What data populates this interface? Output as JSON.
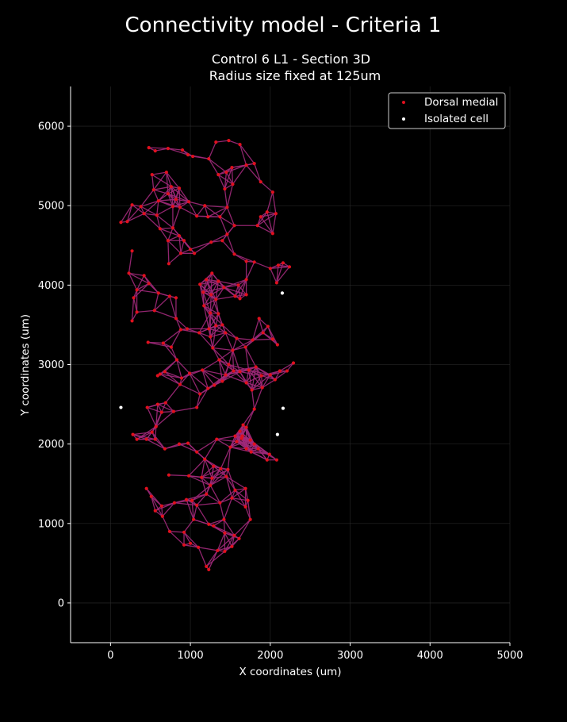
{
  "figure": {
    "title": "Connectivity model - Criteria 1",
    "background": "#000000"
  },
  "chart_data": {
    "type": "scatter",
    "title_lines": [
      "Control 6 L1 - Section 3D",
      "Radius size fixed at 125um"
    ],
    "xlabel": "X coordinates (um)",
    "ylabel": "Y coordinates (um)",
    "xlim": [
      -500,
      5000
    ],
    "ylim": [
      -500,
      6500
    ],
    "xticks": [
      0,
      1000,
      2000,
      3000,
      4000,
      5000
    ],
    "yticks": [
      0,
      1000,
      2000,
      3000,
      4000,
      5000,
      6000
    ],
    "grid": true,
    "legend_position": "top-right",
    "edge_color": "#a0297a",
    "edge_color_minor": "#3f8f7a",
    "series": [
      {
        "name": "Dorsal medial",
        "color": "#e0101e",
        "points": [
          [
            480,
            5730
          ],
          [
            560,
            5690
          ],
          [
            720,
            5720
          ],
          [
            900,
            5700
          ],
          [
            970,
            5640
          ],
          [
            1030,
            5620
          ],
          [
            1230,
            5590
          ],
          [
            1320,
            5800
          ],
          [
            1480,
            5820
          ],
          [
            1620,
            5770
          ],
          [
            1700,
            5510
          ],
          [
            1800,
            5530
          ],
          [
            1520,
            5480
          ],
          [
            1450,
            5420
          ],
          [
            1350,
            5390
          ],
          [
            1530,
            5270
          ],
          [
            1430,
            5210
          ],
          [
            1880,
            5300
          ],
          [
            2030,
            5170
          ],
          [
            2070,
            4900
          ],
          [
            1960,
            4920
          ],
          [
            1880,
            4860
          ],
          [
            1840,
            4750
          ],
          [
            2030,
            4650
          ],
          [
            520,
            5390
          ],
          [
            700,
            5420
          ],
          [
            540,
            5200
          ],
          [
            600,
            5060
          ],
          [
            720,
            5150
          ],
          [
            760,
            5240
          ],
          [
            860,
            5220
          ],
          [
            820,
            5080
          ],
          [
            980,
            5050
          ],
          [
            870,
            4980
          ],
          [
            1180,
            5000
          ],
          [
            1220,
            4860
          ],
          [
            1080,
            4870
          ],
          [
            1370,
            4860
          ],
          [
            1460,
            4980
          ],
          [
            780,
            4990
          ],
          [
            580,
            4880
          ],
          [
            420,
            4900
          ],
          [
            380,
            4990
          ],
          [
            270,
            5010
          ],
          [
            210,
            4800
          ],
          [
            130,
            4790
          ],
          [
            620,
            4710
          ],
          [
            780,
            4720
          ],
          [
            860,
            4620
          ],
          [
            720,
            4560
          ],
          [
            920,
            4560
          ],
          [
            1000,
            4450
          ],
          [
            1050,
            4400
          ],
          [
            880,
            4400
          ],
          [
            730,
            4270
          ],
          [
            1260,
            4540
          ],
          [
            1400,
            4560
          ],
          [
            1550,
            4750
          ],
          [
            1460,
            4640
          ],
          [
            1550,
            4390
          ],
          [
            1700,
            4300
          ],
          [
            1800,
            4290
          ],
          [
            2000,
            4210
          ],
          [
            2100,
            4250
          ],
          [
            2160,
            4280
          ],
          [
            2240,
            4230
          ],
          [
            2080,
            4030
          ],
          [
            2090,
            3250
          ],
          [
            270,
            4430
          ],
          [
            230,
            4150
          ],
          [
            420,
            4120
          ],
          [
            480,
            4020
          ],
          [
            330,
            3940
          ],
          [
            600,
            3900
          ],
          [
            740,
            3860
          ],
          [
            820,
            3840
          ],
          [
            290,
            3840
          ],
          [
            330,
            3660
          ],
          [
            270,
            3550
          ],
          [
            550,
            3680
          ],
          [
            820,
            3580
          ],
          [
            880,
            3440
          ],
          [
            960,
            3450
          ],
          [
            1120,
            4010
          ],
          [
            1200,
            4070
          ],
          [
            1270,
            4150
          ],
          [
            1350,
            4050
          ],
          [
            1420,
            3970
          ],
          [
            1160,
            3910
          ],
          [
            1260,
            3880
          ],
          [
            1320,
            3820
          ],
          [
            1170,
            3740
          ],
          [
            1250,
            3650
          ],
          [
            1350,
            3640
          ],
          [
            1400,
            3500
          ],
          [
            1320,
            3490
          ],
          [
            1230,
            3450
          ],
          [
            1440,
            3400
          ],
          [
            1560,
            3860
          ],
          [
            1620,
            3830
          ],
          [
            1700,
            3880
          ],
          [
            1700,
            4070
          ],
          [
            1600,
            4000
          ],
          [
            1110,
            3400
          ],
          [
            1280,
            3210
          ],
          [
            1250,
            3350
          ],
          [
            1360,
            3060
          ],
          [
            1530,
            3180
          ],
          [
            1580,
            3330
          ],
          [
            1690,
            3220
          ],
          [
            1780,
            3310
          ],
          [
            1860,
            3580
          ],
          [
            1970,
            3480
          ],
          [
            1910,
            3400
          ],
          [
            2030,
            3320
          ],
          [
            1480,
            3000
          ],
          [
            1540,
            2920
          ],
          [
            1440,
            2870
          ],
          [
            1400,
            2790
          ],
          [
            1620,
            2910
          ],
          [
            1730,
            2930
          ],
          [
            1820,
            2970
          ],
          [
            1890,
            2860
          ],
          [
            2000,
            2870
          ],
          [
            2060,
            2810
          ],
          [
            2120,
            2920
          ],
          [
            2290,
            3020
          ],
          [
            2210,
            2920
          ],
          [
            1700,
            2770
          ],
          [
            1770,
            2680
          ],
          [
            1900,
            2710
          ],
          [
            470,
            3280
          ],
          [
            660,
            3270
          ],
          [
            760,
            3220
          ],
          [
            830,
            3060
          ],
          [
            620,
            2880
          ],
          [
            680,
            2910
          ],
          [
            590,
            2860
          ],
          [
            890,
            2830
          ],
          [
            870,
            2750
          ],
          [
            990,
            2890
          ],
          [
            1150,
            2930
          ],
          [
            1300,
            2740
          ],
          [
            1120,
            2630
          ],
          [
            1080,
            2460
          ],
          [
            1220,
            2700
          ],
          [
            1800,
            2440
          ],
          [
            460,
            2460
          ],
          [
            590,
            2500
          ],
          [
            690,
            2520
          ],
          [
            790,
            2410
          ],
          [
            640,
            2400
          ],
          [
            570,
            2220
          ],
          [
            520,
            2150
          ],
          [
            280,
            2120
          ],
          [
            330,
            2060
          ],
          [
            450,
            2060
          ],
          [
            560,
            2060
          ],
          [
            680,
            1940
          ],
          [
            860,
            2000
          ],
          [
            970,
            2010
          ],
          [
            1080,
            1900
          ],
          [
            1180,
            1810
          ],
          [
            1290,
            1720
          ],
          [
            1380,
            1690
          ],
          [
            1470,
            1680
          ],
          [
            1450,
            1590
          ],
          [
            1330,
            2060
          ],
          [
            1500,
            1960
          ],
          [
            1560,
            2100
          ],
          [
            1620,
            2160
          ],
          [
            1660,
            2240
          ],
          [
            1700,
            2210
          ],
          [
            1650,
            2100
          ],
          [
            1750,
            2050
          ],
          [
            1800,
            2000
          ],
          [
            1850,
            1940
          ],
          [
            1700,
            1940
          ],
          [
            1760,
            1900
          ],
          [
            1580,
            2030
          ],
          [
            1640,
            2070
          ],
          [
            1990,
            1870
          ],
          [
            1960,
            1800
          ],
          [
            2080,
            1800
          ],
          [
            730,
            1610
          ],
          [
            980,
            1600
          ],
          [
            1140,
            1580
          ],
          [
            1200,
            1370
          ],
          [
            1270,
            1570
          ],
          [
            1250,
            1480
          ],
          [
            1560,
            1420
          ],
          [
            1690,
            1440
          ],
          [
            1720,
            1290
          ],
          [
            1750,
            1050
          ],
          [
            1690,
            1210
          ],
          [
            1520,
            1320
          ],
          [
            1370,
            1260
          ],
          [
            1230,
            990
          ],
          [
            1290,
            970
          ],
          [
            1420,
            1050
          ],
          [
            1040,
            1050
          ],
          [
            1020,
            1290
          ],
          [
            1080,
            1230
          ],
          [
            950,
            1300
          ],
          [
            800,
            1260
          ],
          [
            640,
            1220
          ],
          [
            560,
            1160
          ],
          [
            650,
            1090
          ],
          [
            450,
            1440
          ],
          [
            510,
            1340
          ],
          [
            740,
            900
          ],
          [
            920,
            890
          ],
          [
            920,
            730
          ],
          [
            1000,
            750
          ],
          [
            1100,
            700
          ],
          [
            1340,
            660
          ],
          [
            1430,
            650
          ],
          [
            1520,
            710
          ],
          [
            1610,
            810
          ],
          [
            1550,
            850
          ],
          [
            1430,
            880
          ],
          [
            1200,
            460
          ],
          [
            1230,
            420
          ]
        ]
      },
      {
        "name": "Isolated cell",
        "color": "#ffffff",
        "points": [
          [
            2150,
            3900
          ],
          [
            2160,
            2450
          ],
          [
            2090,
            2120
          ],
          [
            130,
            2460
          ]
        ]
      }
    ]
  }
}
